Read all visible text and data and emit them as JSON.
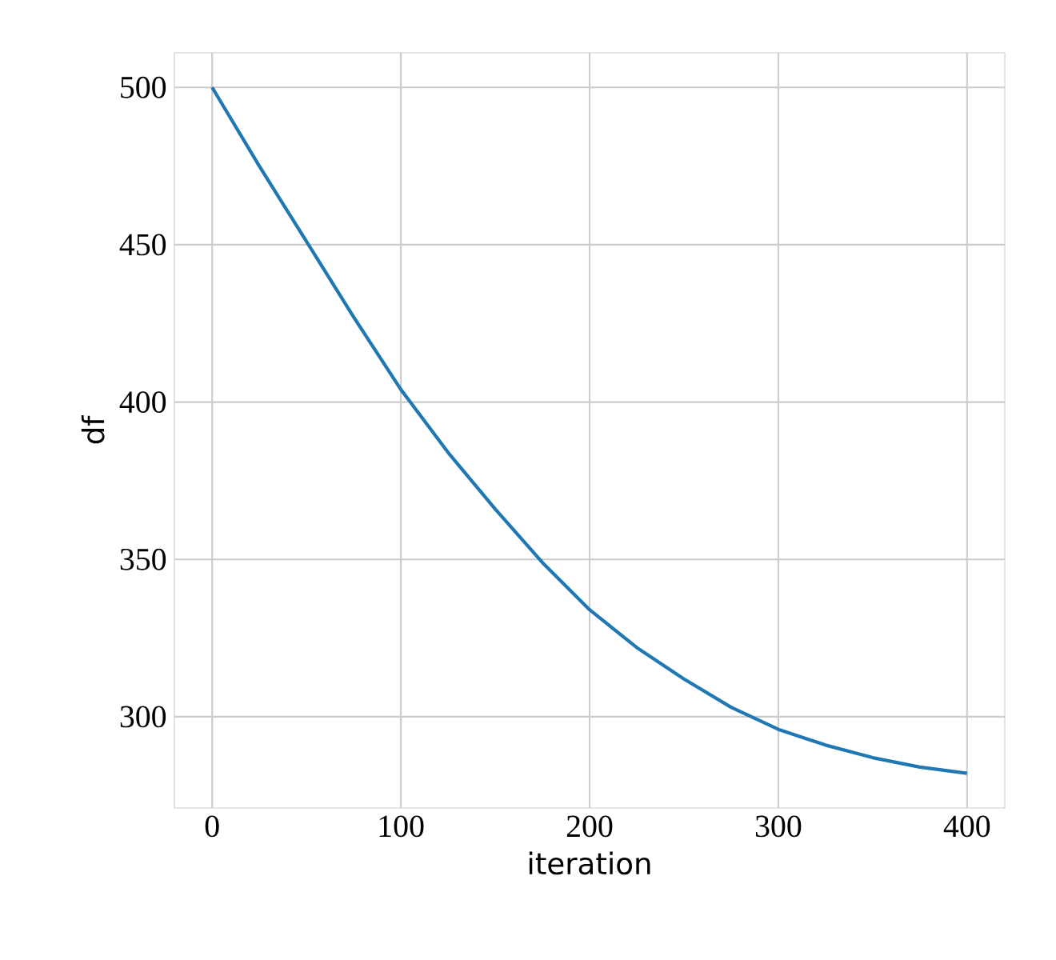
{
  "chart_data": {
    "type": "line",
    "xlabel": "iteration",
    "ylabel": "df",
    "x": [
      0,
      25,
      50,
      75,
      100,
      125,
      150,
      175,
      200,
      225,
      250,
      275,
      300,
      325,
      350,
      375,
      400
    ],
    "series": [
      {
        "color": "#1f77b4",
        "values": [
          500,
          475,
          451,
          427,
          404,
          384,
          366,
          349,
          334,
          322,
          312,
          303,
          296,
          291,
          287,
          284,
          282
        ]
      }
    ],
    "xlim": [
      -20,
      420
    ],
    "ylim": [
      271,
      511
    ],
    "xticks": [
      0,
      100,
      200,
      300,
      400
    ],
    "yticks": [
      300,
      350,
      400,
      450,
      500
    ],
    "grid": true,
    "marker": "none",
    "line_style": "solid"
  }
}
